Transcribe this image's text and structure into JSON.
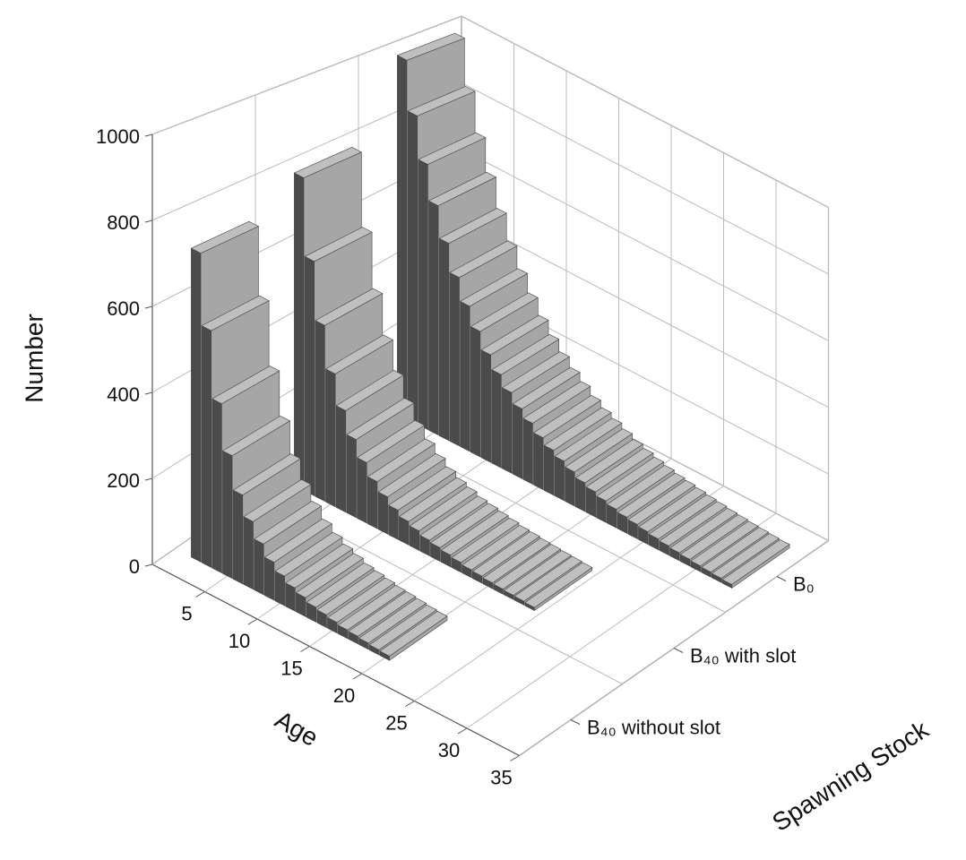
{
  "chart_data": {
    "type": "bar3d",
    "ylabel": "Number",
    "xlabel": "Age",
    "zlabel": "Spawning Stock",
    "x": [
      2,
      3,
      4,
      5,
      6,
      7,
      8,
      9,
      10,
      11,
      12,
      13,
      14,
      15,
      16,
      17,
      18,
      19,
      20,
      21,
      22,
      23,
      24,
      25,
      26,
      27,
      28,
      29,
      30,
      31,
      32,
      33
    ],
    "series": [
      {
        "name": "B₄₀ without slot",
        "color": "#a6a6a6",
        "values": [
          730,
          560,
          400,
          290,
          210,
          160,
          120,
          90,
          70,
          55,
          45,
          35,
          30,
          25,
          20,
          18,
          15,
          12,
          10,
          null,
          null,
          null,
          null,
          null,
          null,
          null,
          null,
          null,
          null,
          null,
          null,
          null
        ]
      },
      {
        "name": "B₄₀ with slot",
        "color": "#a6a6a6",
        "values": [
          800,
          600,
          450,
          340,
          260,
          200,
          155,
          120,
          95,
          75,
          60,
          50,
          40,
          35,
          30,
          25,
          20,
          18,
          15,
          13,
          11,
          10,
          8,
          null,
          null,
          null,
          null,
          null,
          null,
          null,
          null,
          null
        ]
      },
      {
        "name": "B₀",
        "color": "#a6a6a6",
        "values": [
          1000,
          860,
          740,
          640,
          550,
          470,
          405,
          350,
          300,
          260,
          225,
          195,
          170,
          145,
          125,
          110,
          95,
          80,
          70,
          60,
          52,
          45,
          40,
          35,
          30,
          26,
          22,
          19,
          16,
          14,
          12,
          10
        ]
      }
    ],
    "xlim": [
      0,
      35
    ],
    "xticks": [
      5,
      10,
      15,
      20,
      25,
      30,
      35
    ],
    "ylim": [
      0,
      1000
    ],
    "yticks": [
      0,
      200,
      400,
      600,
      800,
      1000
    ],
    "grid": true
  }
}
